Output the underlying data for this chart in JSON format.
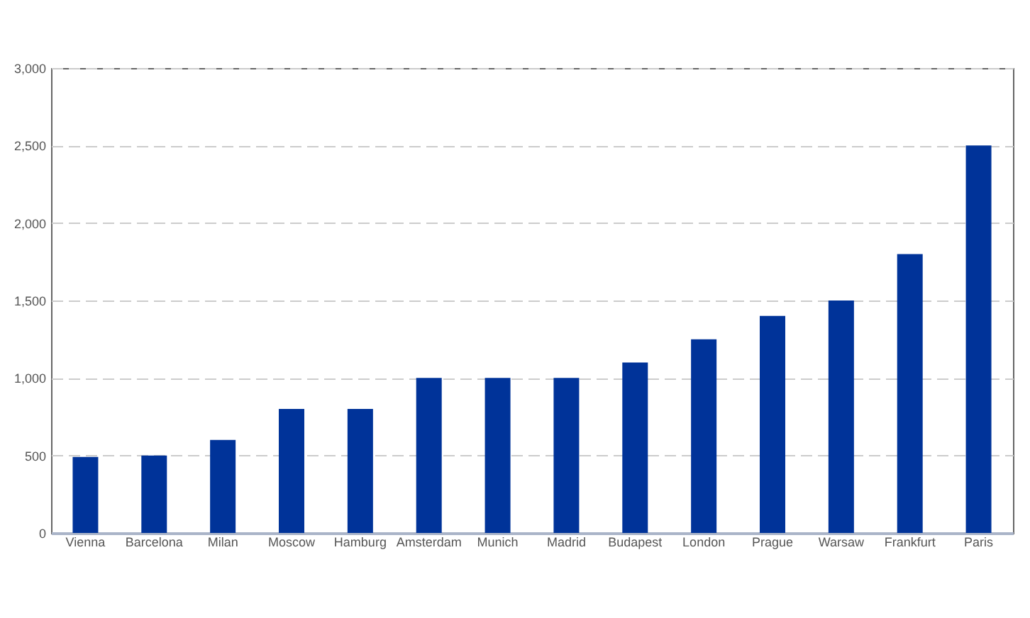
{
  "chart_data": {
    "type": "bar",
    "categories": [
      "Vienna",
      "Barcelona",
      "Milan",
      "Moscow",
      "Hamburg",
      "Amsterdam",
      "Munich",
      "Madrid",
      "Budapest",
      "London",
      "Prague",
      "Warsaw",
      "Frankfurt",
      "Paris"
    ],
    "series": [
      {
        "color": "#003399",
        "values": [
          490,
          500,
          600,
          800,
          800,
          1000,
          1000,
          1000,
          1100,
          1250,
          1400,
          1500,
          1800,
          2500
        ]
      }
    ],
    "ylim": [
      0,
      3000
    ],
    "yticks": [
      0,
      {
        "value": 500,
        "label": "500"
      },
      {
        "value": 1000,
        "label": "1,000"
      },
      {
        "value": 1500,
        "label": "1,500"
      },
      {
        "value": 2000,
        "label": "2,000"
      },
      {
        "value": 2500,
        "label": "2,500"
      },
      {
        "value": 3000,
        "label": "3,000"
      }
    ],
    "grid": "y"
  }
}
